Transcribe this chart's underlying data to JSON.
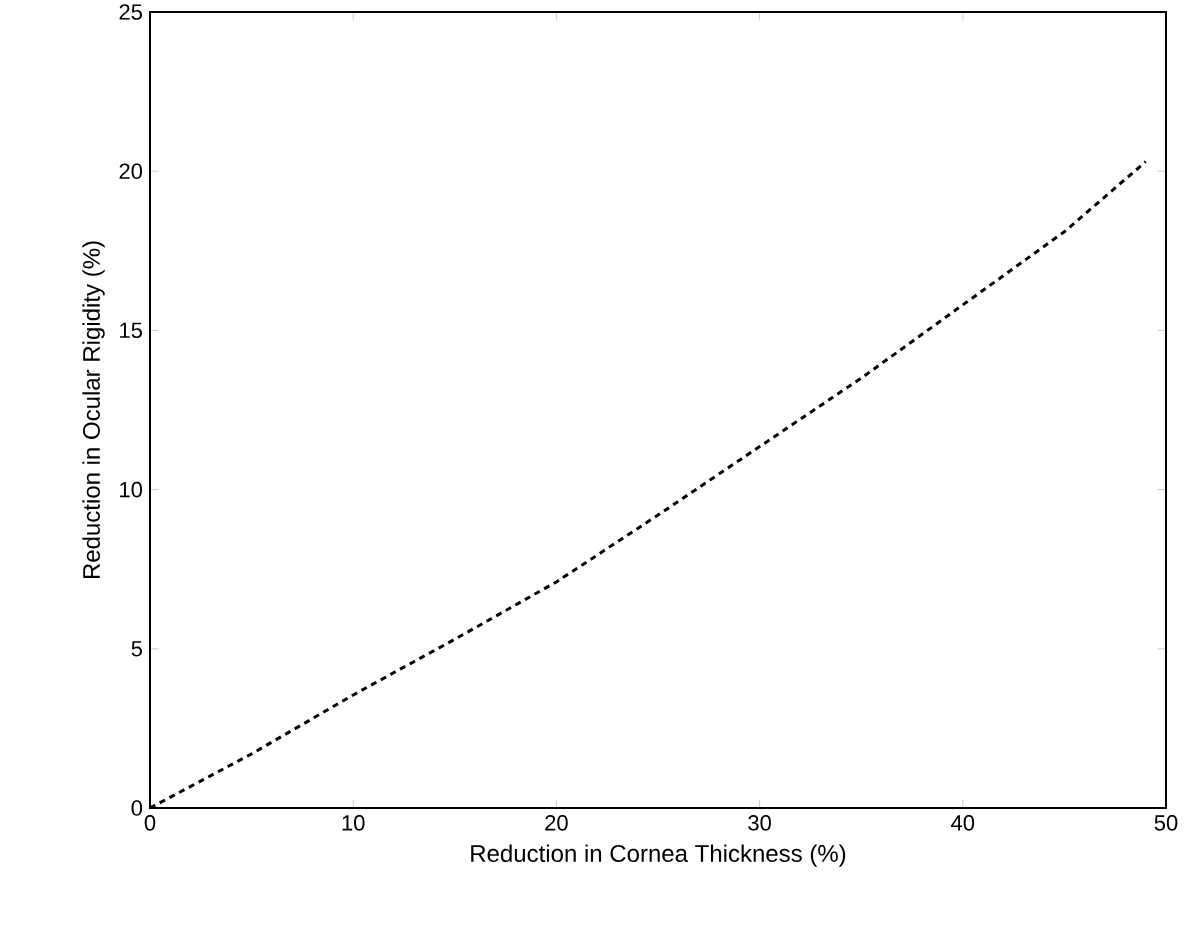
{
  "chart_data": {
    "type": "line",
    "xlabel": "Reduction in Cornea Thickness (%)",
    "ylabel": "Reduction in Ocular Rigidity (%)",
    "x": [
      0,
      5,
      10,
      15,
      20,
      25,
      30,
      35,
      40,
      45,
      49
    ],
    "series": [
      {
        "color": "#000000",
        "line_style": "dashed",
        "values": [
          0,
          1.7,
          3.55,
          5.3,
          7.1,
          9.2,
          11.35,
          13.5,
          15.8,
          18.1,
          20.3
        ]
      }
    ],
    "xlim": [
      0,
      50
    ],
    "ylim": [
      0,
      25
    ],
    "xticks": [
      0,
      10,
      20,
      30,
      40,
      50
    ],
    "yticks": [
      0,
      5,
      10,
      15,
      20,
      25
    ],
    "marker": "none"
  }
}
